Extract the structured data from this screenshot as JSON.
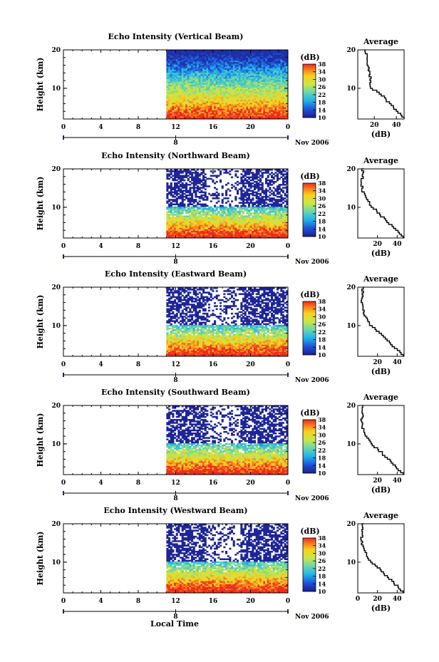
{
  "chart_data": [
    {
      "type": "heatmap",
      "title": "Echo Intensity (Vertical Beam)",
      "ylabel": "Height (km)",
      "xlim": [
        0,
        24
      ],
      "ylim": [
        2,
        20
      ],
      "xticks": [
        "0",
        "4",
        "8",
        "12",
        "16",
        "20",
        "0"
      ],
      "yticks": [
        "10",
        "20"
      ],
      "data_start_hour": 11,
      "date_label": "Nov 2006",
      "day_marker": "8",
      "colorbar": {
        "unit": "(dB)",
        "ticks": [
          "10",
          "14",
          "18",
          "22",
          "26",
          "30",
          "34",
          "38"
        ]
      },
      "profile": {
        "title": "Average",
        "xlabel": "(dB)",
        "xticks": [
          "20",
          "40"
        ],
        "yticks": [
          "10",
          "20"
        ],
        "xlim": [
          5,
          47
        ],
        "height": [
          2,
          4,
          6,
          8,
          10,
          12,
          14,
          16,
          18,
          20
        ],
        "value": [
          47,
          40,
          33,
          27,
          16,
          17,
          15,
          14,
          13,
          12
        ]
      }
    },
    {
      "type": "heatmap",
      "title": "Echo Intensity (Northward Beam)",
      "ylabel": "Height (km)",
      "xlim": [
        0,
        24
      ],
      "ylim": [
        2,
        20
      ],
      "xticks": [
        "0",
        "4",
        "8",
        "12",
        "16",
        "20",
        "0"
      ],
      "yticks": [
        "10",
        "20"
      ],
      "data_start_hour": 11,
      "date_label": "Nov 2006",
      "day_marker": "8",
      "colorbar": {
        "unit": "(dB)",
        "ticks": [
          "10",
          "14",
          "18",
          "22",
          "26",
          "30",
          "34",
          "38"
        ]
      },
      "profile": {
        "title": "Average",
        "xlabel": "(dB)",
        "xticks": [
          "20",
          "40"
        ],
        "yticks": [
          "10",
          "20"
        ],
        "xlim": [
          0,
          47
        ],
        "height": [
          2,
          4,
          6,
          8,
          10,
          12,
          14,
          16,
          18,
          20
        ],
        "value": [
          46,
          38,
          30,
          22,
          14,
          8,
          5,
          4,
          5,
          5
        ]
      }
    },
    {
      "type": "heatmap",
      "title": "Echo Intensity (Eastward Beam)",
      "ylabel": "Height (km)",
      "xlim": [
        0,
        24
      ],
      "ylim": [
        2,
        20
      ],
      "xticks": [
        "0",
        "4",
        "8",
        "12",
        "16",
        "20",
        "0"
      ],
      "yticks": [
        "10",
        "20"
      ],
      "data_start_hour": 11,
      "date_label": "Nov 2006",
      "day_marker": "8",
      "colorbar": {
        "unit": "(dB)",
        "ticks": [
          "10",
          "14",
          "18",
          "22",
          "26",
          "30",
          "34",
          "38"
        ]
      },
      "profile": {
        "title": "Average",
        "xlabel": "(dB)",
        "xticks": [
          "20",
          "40"
        ],
        "yticks": [
          "10",
          "20"
        ],
        "xlim": [
          0,
          47
        ],
        "height": [
          2,
          4,
          6,
          8,
          10,
          12,
          14,
          16,
          18,
          20
        ],
        "value": [
          46,
          38,
          30,
          22,
          13,
          8,
          5,
          4,
          5,
          5
        ]
      }
    },
    {
      "type": "heatmap",
      "title": "Echo Intensity (Southward Beam)",
      "ylabel": "Height (km)",
      "xlim": [
        0,
        24
      ],
      "ylim": [
        2,
        20
      ],
      "xticks": [
        "0",
        "4",
        "8",
        "12",
        "16",
        "20",
        "0"
      ],
      "yticks": [
        "10",
        "20"
      ],
      "data_start_hour": 11,
      "date_label": "Nov 2006",
      "day_marker": "8",
      "colorbar": {
        "unit": "(dB)",
        "ticks": [
          "10",
          "14",
          "18",
          "22",
          "26",
          "30",
          "34",
          "38"
        ]
      },
      "profile": {
        "title": "Average",
        "xlabel": "(dB)",
        "xticks": [
          "20",
          "40"
        ],
        "yticks": [
          "10",
          "20"
        ],
        "xlim": [
          0,
          47
        ],
        "height": [
          2,
          4,
          6,
          8,
          10,
          12,
          14,
          16,
          18,
          20
        ],
        "value": [
          46,
          38,
          30,
          22,
          13,
          8,
          5,
          4,
          5,
          5
        ]
      }
    },
    {
      "type": "heatmap",
      "title": "Echo Intensity (Westward Beam)",
      "ylabel": "Height (km)",
      "xlim": [
        0,
        24
      ],
      "ylim": [
        2,
        20
      ],
      "xticks": [
        "0",
        "4",
        "8",
        "12",
        "16",
        "20",
        "0"
      ],
      "yticks": [
        "10",
        "20"
      ],
      "data_start_hour": 11,
      "date_label": "Nov 2006",
      "day_marker": "8",
      "xlabel": "Local Time",
      "colorbar": {
        "unit": "(dB)",
        "ticks": [
          "10",
          "14",
          "18",
          "22",
          "26",
          "30",
          "34",
          "38"
        ]
      },
      "profile": {
        "title": "Average",
        "xlabel": "(dB)",
        "xticks": [
          "0",
          "20",
          "40"
        ],
        "yticks": [
          "10",
          "20"
        ],
        "xlim": [
          0,
          47
        ],
        "height": [
          2,
          4,
          6,
          8,
          10,
          12,
          14,
          16,
          18,
          20
        ],
        "value": [
          46,
          38,
          30,
          22,
          13,
          8,
          5,
          4,
          5,
          5
        ]
      }
    }
  ]
}
